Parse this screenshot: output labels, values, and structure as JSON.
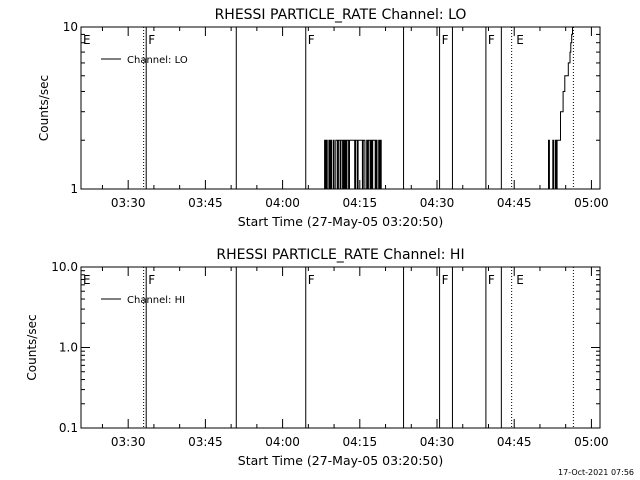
{
  "timestamp": "17-Oct-2021 07:56",
  "chart_data": [
    {
      "type": "line",
      "title": "RHESSI PARTICLE_RATE Channel: LO",
      "xlabel": "Start Time (27-May-05 03:20:50)",
      "ylabel": "Counts/sec",
      "scale_y": "log",
      "ylim": [
        1,
        10
      ],
      "xlim": [
        "03:20:50",
        "05:01:40"
      ],
      "x_ticks": [
        "03:30",
        "03:45",
        "04:00",
        "04:15",
        "04:30",
        "04:45",
        "05:00"
      ],
      "y_ticks": [
        "1",
        "10"
      ],
      "legend": {
        "position": "top-left",
        "entries": [
          "Channel: LO"
        ]
      },
      "grid": false,
      "flags": [
        {
          "time": "03:20:50",
          "label": "E",
          "style": "none"
        },
        {
          "time": "03:33:00",
          "label": "",
          "style": "dotted"
        },
        {
          "time": "03:33:30",
          "label": "F",
          "style": "solid"
        },
        {
          "time": "03:51:00",
          "label": "",
          "style": "solid"
        },
        {
          "time": "04:04:30",
          "label": "F",
          "style": "solid"
        },
        {
          "time": "04:23:30",
          "label": "",
          "style": "solid"
        },
        {
          "time": "04:30:30",
          "label": "F",
          "style": "solid"
        },
        {
          "time": "04:33:00",
          "label": "",
          "style": "solid"
        },
        {
          "time": "04:39:30",
          "label": "F",
          "style": "solid"
        },
        {
          "time": "04:42:30",
          "label": "",
          "style": "solid"
        },
        {
          "time": "04:44:30",
          "label": "",
          "style": "dotted"
        },
        {
          "time": "04:45:00",
          "label": "E",
          "style": "none"
        },
        {
          "time": "04:56:30",
          "label": "",
          "style": "dotted"
        }
      ],
      "series": [
        {
          "name": "Channel: LO",
          "x": [
            "04:08:00",
            "04:08:10",
            "04:08:20",
            "04:08:30",
            "04:08:40",
            "04:08:50",
            "04:09:00",
            "04:09:10",
            "04:09:20",
            "04:09:30",
            "04:09:40",
            "04:09:50",
            "04:10:00",
            "04:10:10",
            "04:10:20",
            "04:10:30",
            "04:10:40",
            "04:10:50",
            "04:11:00",
            "04:11:10",
            "04:11:20",
            "04:11:30",
            "04:11:40",
            "04:11:50",
            "04:12:00",
            "04:12:10",
            "04:12:20",
            "04:12:30",
            "04:12:40",
            "04:12:50",
            "04:13:00",
            "04:13:10",
            "04:13:20",
            "04:13:30",
            "04:13:40",
            "04:13:50",
            "04:14:00",
            "04:14:10",
            "04:14:20",
            "04:14:30",
            "04:14:40",
            "04:14:50",
            "04:15:00",
            "04:15:10",
            "04:15:20",
            "04:15:30",
            "04:15:40",
            "04:15:50",
            "04:16:00",
            "04:16:10",
            "04:16:20",
            "04:16:30",
            "04:16:40",
            "04:16:50",
            "04:17:00",
            "04:17:10",
            "04:17:20",
            "04:17:30",
            "04:17:40",
            "04:17:50",
            "04:18:00",
            "04:18:10",
            "04:18:20",
            "04:18:30",
            "04:18:40",
            "04:18:50",
            "04:19:00",
            "04:19:10",
            "04:19:20"
          ],
          "values": [
            1,
            2,
            1,
            2,
            1,
            1,
            2,
            1,
            2,
            1,
            1,
            2,
            1,
            1,
            2,
            2,
            1,
            2,
            2,
            1,
            2,
            2,
            1,
            2,
            1,
            2,
            1,
            2,
            2,
            1,
            2,
            2,
            2,
            2,
            2,
            2,
            1,
            2,
            2,
            1,
            2,
            2,
            2,
            2,
            2,
            1,
            2,
            2,
            1,
            1,
            2,
            1,
            2,
            2,
            1,
            2,
            1,
            2,
            2,
            2,
            1,
            2,
            1,
            1,
            2,
            1,
            2,
            1,
            1
          ]
        },
        {
          "name": "Channel: LO",
          "x": [
            "04:51:30",
            "04:51:40",
            "04:51:50",
            "04:52:00",
            "04:52:10",
            "04:52:20",
            "04:52:30",
            "04:52:40",
            "04:52:50",
            "04:53:00",
            "04:53:10",
            "04:53:20",
            "04:53:30",
            "04:53:40",
            "04:53:50",
            "04:54:00",
            "04:54:10",
            "04:54:20",
            "04:54:30",
            "04:54:40",
            "04:54:50",
            "04:55:00",
            "04:55:10",
            "04:55:20",
            "04:55:30",
            "04:55:40",
            "04:55:50",
            "04:56:00",
            "04:56:10",
            "04:56:20",
            "04:56:30"
          ],
          "values": [
            1,
            2,
            1,
            1,
            1,
            1,
            2,
            1,
            1,
            2,
            1,
            2,
            2,
            2,
            2,
            3,
            3,
            3,
            4,
            4,
            5,
            5,
            5,
            5,
            6,
            6,
            7,
            8,
            9,
            10,
            10
          ]
        }
      ]
    },
    {
      "type": "line",
      "title": "RHESSI PARTICLE_RATE Channel: HI",
      "xlabel": "Start Time (27-May-05 03:20:50)",
      "ylabel": "Counts/sec",
      "scale_y": "log",
      "ylim": [
        0.1,
        10.0
      ],
      "xlim": [
        "03:20:50",
        "05:01:40"
      ],
      "x_ticks": [
        "03:30",
        "03:45",
        "04:00",
        "04:15",
        "04:30",
        "04:45",
        "05:00"
      ],
      "y_ticks": [
        "10.0",
        "1.0",
        "0.1"
      ],
      "legend": {
        "position": "top-left",
        "entries": [
          "Channel: HI"
        ]
      },
      "grid": false,
      "flags": [
        {
          "time": "03:20:50",
          "label": "E",
          "style": "none"
        },
        {
          "time": "03:33:00",
          "label": "",
          "style": "dotted"
        },
        {
          "time": "03:33:30",
          "label": "F",
          "style": "solid"
        },
        {
          "time": "03:51:00",
          "label": "",
          "style": "solid"
        },
        {
          "time": "04:04:30",
          "label": "F",
          "style": "solid"
        },
        {
          "time": "04:23:30",
          "label": "",
          "style": "solid"
        },
        {
          "time": "04:30:30",
          "label": "F",
          "style": "solid"
        },
        {
          "time": "04:33:00",
          "label": "",
          "style": "solid"
        },
        {
          "time": "04:39:30",
          "label": "F",
          "style": "solid"
        },
        {
          "time": "04:42:30",
          "label": "",
          "style": "solid"
        },
        {
          "time": "04:44:30",
          "label": "",
          "style": "dotted"
        },
        {
          "time": "04:45:00",
          "label": "E",
          "style": "none"
        },
        {
          "time": "04:56:30",
          "label": "",
          "style": "dotted"
        }
      ],
      "series": [
        {
          "name": "Channel: HI",
          "x": [],
          "values": []
        }
      ]
    }
  ]
}
